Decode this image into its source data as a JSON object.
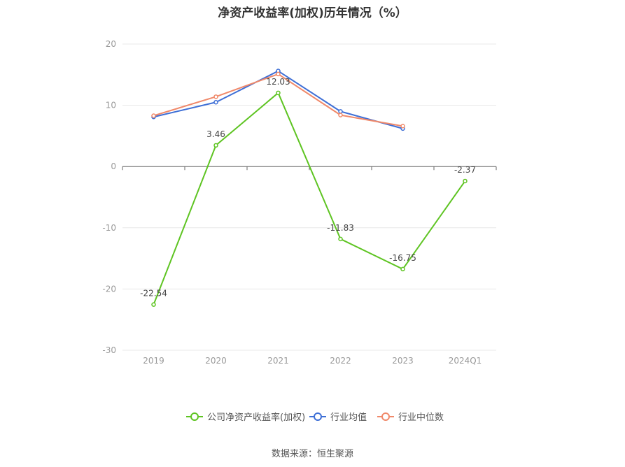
{
  "title": "净资产收益率(加权)历年情况（%）",
  "source": "数据来源：恒生聚源",
  "colors": {
    "company": "#5ec422",
    "industry_avg": "#3e6fd6",
    "industry_median": "#f0896a",
    "grid": "#e8e8e8",
    "axis": "#666666"
  },
  "chart_data": {
    "type": "line",
    "title": "净资产收益率(加权)历年情况（%）",
    "xlabel": "",
    "ylabel": "",
    "categories": [
      "2019",
      "2020",
      "2021",
      "2022",
      "2023",
      "2024Q1"
    ],
    "ylim": [
      -30,
      20
    ],
    "yticks": [
      20,
      10,
      0,
      -10,
      -20,
      -30
    ],
    "grid": true,
    "legend_position": "bottom",
    "series": [
      {
        "name": "公司净资产收益率(加权)",
        "color": "#5ec422",
        "values": [
          -22.54,
          3.46,
          12.03,
          -11.83,
          -16.75,
          -2.37
        ],
        "labels": [
          "-22.54",
          "3.46",
          "12.03",
          "-11.83",
          "-16.75",
          "-2.37"
        ]
      },
      {
        "name": "行业均值",
        "color": "#3e6fd6",
        "values": [
          8.1,
          10.5,
          15.6,
          9.0,
          6.2,
          null
        ]
      },
      {
        "name": "行业中位数",
        "color": "#f0896a",
        "values": [
          8.3,
          11.4,
          15.1,
          8.4,
          6.6,
          null
        ]
      }
    ]
  }
}
